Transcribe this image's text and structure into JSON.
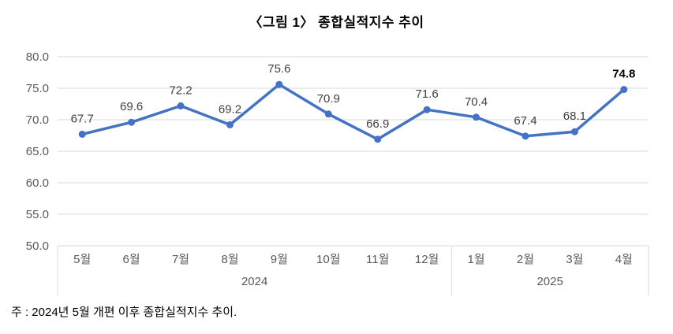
{
  "note": "주 : 2024년 5월 개편 이후 종합실적지수 추이.",
  "chart_data": {
    "type": "line",
    "title": "〈그림 1〉 종합실적지수 추이",
    "categories": [
      "5월",
      "6월",
      "7월",
      "8월",
      "9월",
      "10월",
      "11월",
      "12월",
      "1월",
      "2월",
      "3월",
      "4월"
    ],
    "year_groups": [
      {
        "label": "2024",
        "span": 8
      },
      {
        "label": "2025",
        "span": 4
      }
    ],
    "series": [
      {
        "name": "종합실적지수",
        "values": [
          67.7,
          69.6,
          72.2,
          69.2,
          75.6,
          70.9,
          66.9,
          71.6,
          70.4,
          67.4,
          68.1,
          74.8
        ]
      }
    ],
    "data_labels": [
      "67.7",
      "69.6",
      "72.2",
      "69.2",
      "75.6",
      "70.9",
      "66.9",
      "71.6",
      "70.4",
      "67.4",
      "68.1",
      "74.8"
    ],
    "ylim": [
      50.0,
      80.0
    ],
    "ytick_step": 5.0,
    "yticks": [
      "80.0",
      "75.0",
      "70.0",
      "65.0",
      "60.0",
      "55.0",
      "50.0"
    ],
    "grid": true,
    "legend": false,
    "last_label_bold": true,
    "line_color": "#4472C4",
    "marker_color": "#4472C4",
    "label_color": "#404040",
    "last_label_color": "#000000",
    "axis_text_color": "#595959",
    "gridline_color": "#D9D9D9"
  }
}
